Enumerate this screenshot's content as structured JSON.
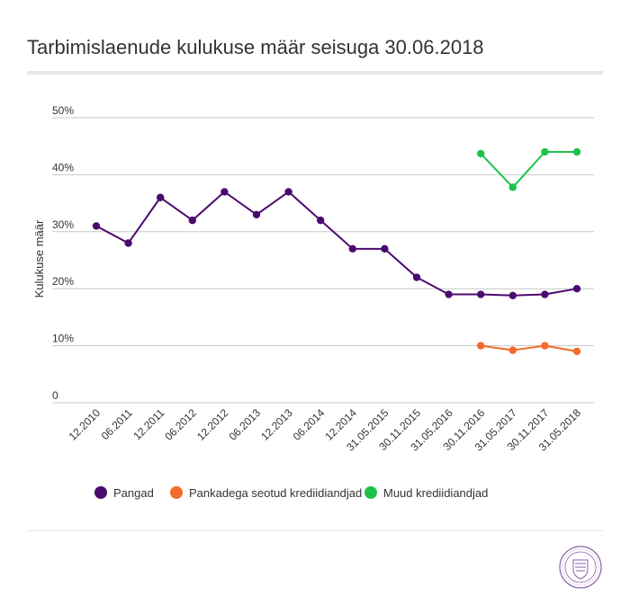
{
  "title": "Tarbimislaenude kulukuse määr seisuga 30.06.2018",
  "chart_data": {
    "type": "line",
    "title": "Tarbimislaenude kulukuse määr seisuga 30.06.2018",
    "ylabel": "Kulukuse määr",
    "xlabel": "",
    "ylim": [
      0,
      50
    ],
    "y_ticks": [
      "0",
      "10%",
      "20%",
      "30%",
      "40%",
      "50%"
    ],
    "y_tick_values": [
      0,
      10,
      20,
      30,
      40,
      50
    ],
    "grid": true,
    "legend_position": "bottom",
    "categories": [
      "12.2010",
      "06.2011",
      "12.2011",
      "06.2012",
      "12.2012",
      "06.2013",
      "12.2013",
      "06.2014",
      "12.2014",
      "31.05.2015",
      "30.11.2015",
      "31.05.2016",
      "30.11.2016",
      "31.05.2017",
      "30.11.2017",
      "31.05.2018"
    ],
    "series": [
      {
        "name": "Pangad",
        "color": "#4b0a6e",
        "values": [
          31,
          28,
          36,
          32,
          37,
          33,
          37,
          32,
          27,
          27,
          22,
          19,
          19,
          18.8,
          19,
          20
        ]
      },
      {
        "name": "Pankadega seotud krediidiandjad",
        "color": "#f26b2a",
        "values": [
          null,
          null,
          null,
          null,
          null,
          null,
          null,
          null,
          null,
          null,
          null,
          null,
          10,
          9.2,
          10,
          9
        ]
      },
      {
        "name": "Muud krediidiandjad",
        "color": "#1ec24b",
        "values": [
          null,
          null,
          null,
          null,
          null,
          null,
          null,
          null,
          null,
          null,
          null,
          null,
          43.7,
          37.8,
          44,
          44
        ]
      }
    ]
  },
  "seal": {
    "icon": "estonian-seal-icon",
    "color": "#8a5fa8"
  }
}
